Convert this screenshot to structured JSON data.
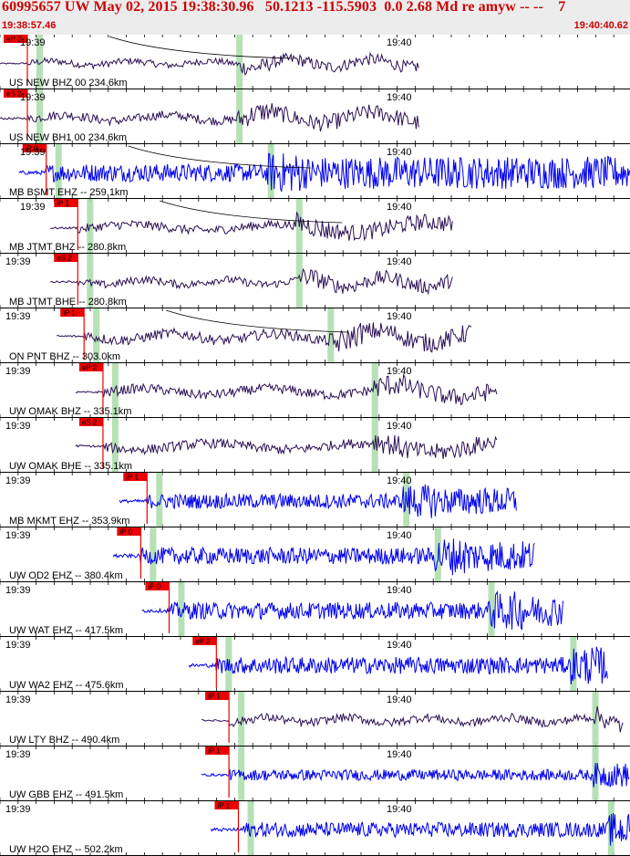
{
  "header": {
    "title": "60995657 UW May 02, 2015 19:38:30.96   50.1213 -115.5903  0.0 2.68 Md re amyw -- --    7",
    "start_time": "19:38:57.46",
    "end_time": "19:40:40.62"
  },
  "colors": {
    "header_bg": "#ececec",
    "header_text": "#cc0000",
    "trace_dark": "#2b1055",
    "trace_blue": "#0000ee",
    "pick_box": "#ee0000",
    "arrival_band": "#a8dca8",
    "divider": "#000000"
  },
  "time_labels": {
    "minute1": "19:39",
    "minute2": "19:40"
  },
  "traces": [
    {
      "label": "US NEW BHZ 00 234.6km",
      "color": "dark",
      "pick": "eP 2",
      "start": 0.0,
      "end": 0.665,
      "amp": 0.55,
      "curve": true,
      "sband": 0.375
    },
    {
      "label": "US NEW BH1 00 234.6km",
      "color": "dark",
      "pick": "eS 2",
      "start": 0.0,
      "end": 0.665,
      "amp": 0.75,
      "curve": false,
      "sband": 0.375
    },
    {
      "label": "MB BSMT EHZ -- 259.1km",
      "color": "blue",
      "pick": "iP 0",
      "start": 0.03,
      "end": 1.0,
      "amp": 0.9,
      "curve": true,
      "sband": 0.425
    },
    {
      "label": "MB JTMT BHZ -- 280.8km",
      "color": "dark",
      "pick": "iP 1",
      "start": 0.08,
      "end": 0.72,
      "amp": 0.75,
      "curve": true,
      "sband": 0.47
    },
    {
      "label": "MB JTMT BHE -- 280.8km",
      "color": "dark",
      "pick": "eS 2",
      "start": 0.08,
      "end": 0.72,
      "amp": 0.65,
      "curve": false,
      "sband": 0.47
    },
    {
      "label": "ON PNT BHZ -- 303.0km",
      "color": "dark",
      "pick": "iP 1",
      "start": 0.09,
      "end": 0.75,
      "amp": 0.85,
      "curve": true,
      "sband": 0.52
    },
    {
      "label": "UW OMAK BHZ -- 335.1km",
      "color": "dark",
      "pick": "eP 2",
      "start": 0.12,
      "end": 0.79,
      "amp": 0.8,
      "curve": false,
      "sband": 0.59
    },
    {
      "label": "UW OMAK BHE -- 335.1km",
      "color": "dark",
      "pick": "eS 2",
      "start": 0.12,
      "end": 0.79,
      "amp": 0.8,
      "curve": false,
      "sband": 0.59
    },
    {
      "label": "MB MKMT EHZ -- 353.9km",
      "color": "blue",
      "pick": "iP 1",
      "start": 0.19,
      "end": 0.82,
      "amp": 0.75,
      "curve": false,
      "sband": 0.64
    },
    {
      "label": "UW OD2 EHZ -- 380.4km",
      "color": "blue",
      "pick": "iP 0",
      "start": 0.18,
      "end": 0.85,
      "amp": 0.85,
      "curve": false,
      "sband": 0.69
    },
    {
      "label": "UW WAT EHZ -- 417.5km",
      "color": "blue",
      "pick": "iP 0",
      "start": 0.225,
      "end": 0.895,
      "amp": 0.85,
      "curve": false,
      "sband": 0.775
    },
    {
      "label": "UW WA2 EHZ -- 475.6km",
      "color": "blue",
      "pick": "eP 2",
      "start": 0.3,
      "end": 0.965,
      "amp": 0.85,
      "curve": false,
      "sband": 0.905
    },
    {
      "label": "UW LTY BHZ -- 490.4km",
      "color": "dark",
      "pick": "iP 1",
      "start": 0.32,
      "end": 0.99,
      "amp": 0.7,
      "curve": false,
      "sband": 0.94
    },
    {
      "label": "UW GBB EHZ -- 491.5km",
      "color": "blue",
      "pick": "iP 1",
      "start": 0.32,
      "end": 1.0,
      "amp": 0.55,
      "curve": false,
      "sband": 0.94
    },
    {
      "label": "UW H2O EHZ -- 502.2km",
      "color": "blue",
      "pick": "iP 1",
      "start": 0.335,
      "end": 1.0,
      "amp": 0.75,
      "curve": false,
      "sband": 0.965
    }
  ]
}
